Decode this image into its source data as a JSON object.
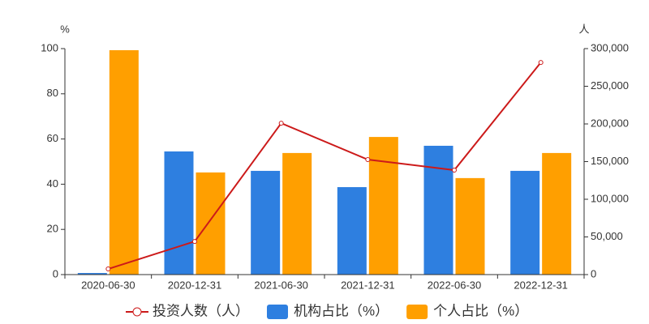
{
  "chart_data": {
    "type": "bar_line",
    "y_label": "%",
    "y2_label": "人",
    "categories": [
      "2020-06-30",
      "2020-12-31",
      "2021-06-30",
      "2021-12-31",
      "2022-06-30",
      "2022-12-31"
    ],
    "series": [
      {
        "name": "投资人数（人）",
        "type": "line",
        "axis": "y2",
        "color": "#cc1a1a",
        "values": [
          7500,
          44000,
          201000,
          152700,
          138700,
          281600
        ]
      },
      {
        "name": "机构占比（%）",
        "type": "bar",
        "color": "#2e7fe0",
        "values": [
          0.7,
          54.5,
          45.9,
          38.7,
          57.0,
          45.9
        ]
      },
      {
        "name": "个人占比（%）",
        "type": "bar",
        "color": "#ff9f00",
        "values": [
          99.3,
          45.2,
          53.8,
          60.9,
          42.7,
          53.8
        ]
      }
    ],
    "ylim": [
      0,
      100
    ],
    "yticks": [
      0,
      20,
      40,
      60,
      80,
      100
    ],
    "y2lim": [
      0,
      300000
    ],
    "y2ticks": [
      0,
      {
        "value": 50000,
        "label": "50,000"
      },
      {
        "value": 100000,
        "label": "100,000"
      },
      {
        "value": 150000,
        "label": "150,000"
      },
      {
        "value": 200000,
        "label": "200,000"
      },
      {
        "value": 250000,
        "label": "250,000"
      },
      {
        "value": 300000,
        "label": "300,000"
      }
    ]
  }
}
